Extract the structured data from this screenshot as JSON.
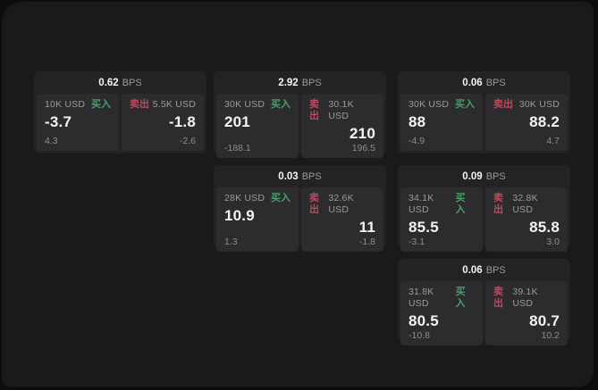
{
  "labels": {
    "buy": "买入",
    "sell": "卖出",
    "bps_unit": "BPS"
  },
  "colors": {
    "buy_green": "#46a069",
    "sell_red": "#c0485c",
    "panel_bg": "#1a1a1c",
    "card_bg": "#232325",
    "cell_bg": "#2c2c2f"
  },
  "cards": [
    {
      "bps": "0.62",
      "col": 1,
      "row": 1,
      "buy": {
        "notional": "10K USD",
        "price": "-3.7",
        "delta": "4.3"
      },
      "sell": {
        "notional": "5.5K USD",
        "price": "-1.8",
        "delta": "-2.6"
      }
    },
    {
      "bps": "2.92",
      "col": 2,
      "row": 1,
      "buy": {
        "notional": "30K USD",
        "price": "201",
        "delta": "-188.1"
      },
      "sell": {
        "notional": "30.1K USD",
        "price": "210",
        "delta": "196.5"
      }
    },
    {
      "bps": "0.06",
      "col": 3,
      "row": 1,
      "buy": {
        "notional": "30K USD",
        "price": "88",
        "delta": "-4.9"
      },
      "sell": {
        "notional": "30K USD",
        "price": "88.2",
        "delta": "4.7"
      }
    },
    {
      "bps": "0.03",
      "col": 2,
      "row": 2,
      "buy": {
        "notional": "28K USD",
        "price": "10.9",
        "delta": "1.3"
      },
      "sell": {
        "notional": "32.6K USD",
        "price": "11",
        "delta": "-1.8"
      }
    },
    {
      "bps": "0.09",
      "col": 3,
      "row": 2,
      "buy": {
        "notional": "34.1K USD",
        "price": "85.5",
        "delta": "-3.1"
      },
      "sell": {
        "notional": "32.8K USD",
        "price": "85.8",
        "delta": "3.0"
      }
    },
    {
      "bps": "0.06",
      "col": 3,
      "row": 3,
      "buy": {
        "notional": "31.8K USD",
        "price": "80.5",
        "delta": "-10.8"
      },
      "sell": {
        "notional": "39.1K USD",
        "price": "80.7",
        "delta": "10.2"
      }
    }
  ]
}
